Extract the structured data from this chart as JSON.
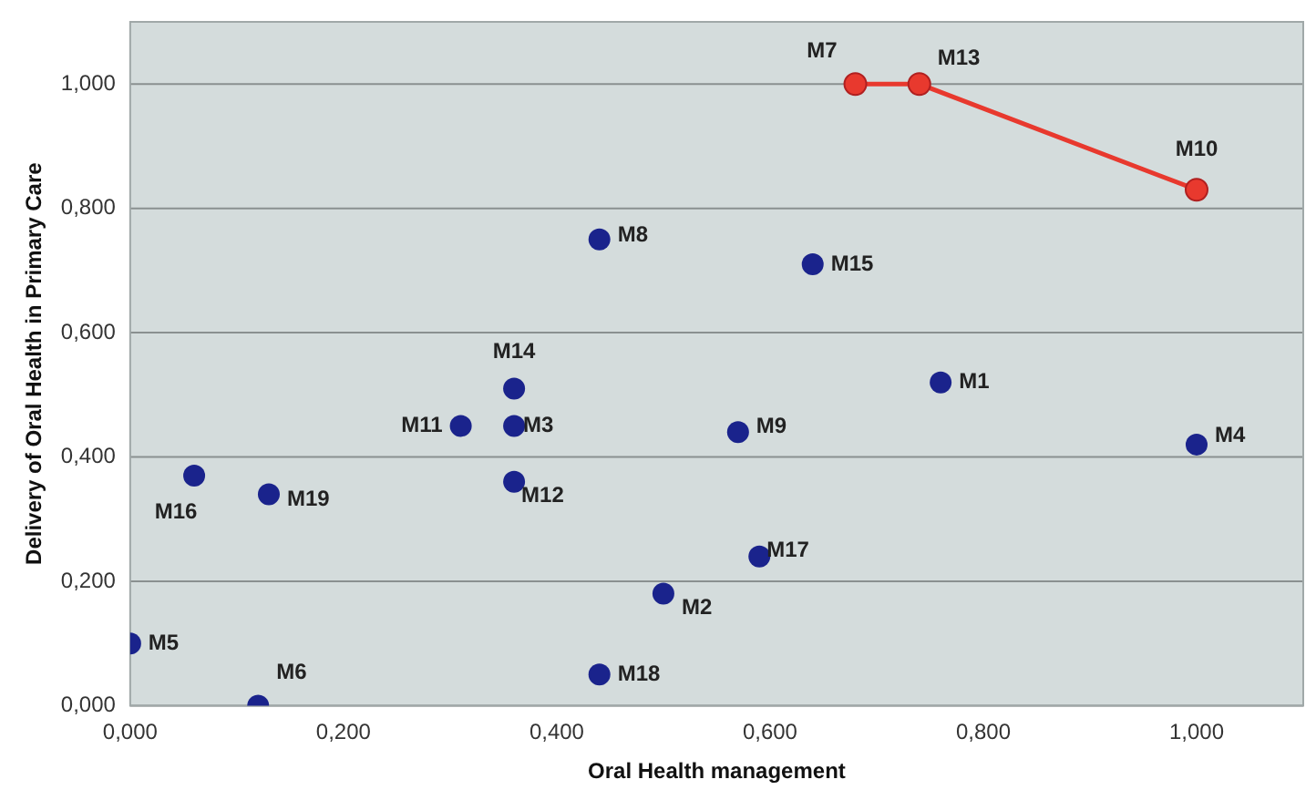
{
  "chart_data": {
    "type": "scatter",
    "xlabel": "Oral Health management",
    "ylabel": "Delivery of Oral Health in Primary Care",
    "xlim": [
      0,
      1.1
    ],
    "ylim": [
      0,
      1.1
    ],
    "xticks": [
      {
        "value": 0,
        "label": "0,000"
      },
      {
        "value": 0.2,
        "label": "0,200"
      },
      {
        "value": 0.4,
        "label": "0,400"
      },
      {
        "value": 0.6,
        "label": "0,600"
      },
      {
        "value": 0.8,
        "label": "0,800"
      },
      {
        "value": 1,
        "label": "1,000"
      }
    ],
    "yticks": [
      {
        "value": 0,
        "label": "0,000"
      },
      {
        "value": 0.2,
        "label": "0,200"
      },
      {
        "value": 0.4,
        "label": "0,400"
      },
      {
        "value": 0.6,
        "label": "0,600"
      },
      {
        "value": 0.8,
        "label": "0,800"
      },
      {
        "value": 1,
        "label": "1,000"
      }
    ],
    "grid": "y",
    "legend": false,
    "marker": "circle",
    "series": [
      {
        "color": "#1a238c",
        "x": [
          0.76,
          0.5,
          0.36,
          1.0,
          0.0,
          0.12,
          0.44,
          0.57,
          0.31,
          0.36,
          0.36,
          0.64,
          0.06,
          0.59,
          0.44,
          0.13
        ],
        "values": [
          0.52,
          0.18,
          0.45,
          0.42,
          0.1,
          0.0,
          0.75,
          0.44,
          0.45,
          0.36,
          0.51,
          0.71,
          0.37,
          0.24,
          0.05,
          0.34
        ]
      },
      {
        "type": "line",
        "color": "#e8392e",
        "line_style": "solid",
        "x": [
          0.68,
          0.74,
          1.0
        ],
        "values": [
          1.0,
          1.0,
          0.83
        ]
      }
    ],
    "annotations": [
      {
        "text": "M1",
        "x": 0.76,
        "y": 0.52
      },
      {
        "text": "M2",
        "x": 0.5,
        "y": 0.18
      },
      {
        "text": "M3",
        "x": 0.36,
        "y": 0.45
      },
      {
        "text": "M4",
        "x": 1.0,
        "y": 0.42
      },
      {
        "text": "M5",
        "x": 0.0,
        "y": 0.1
      },
      {
        "text": "M6",
        "x": 0.12,
        "y": 0.0
      },
      {
        "text": "M7",
        "x": 0.68,
        "y": 1.0
      },
      {
        "text": "M8",
        "x": 0.44,
        "y": 0.75
      },
      {
        "text": "M9",
        "x": 0.57,
        "y": 0.44
      },
      {
        "text": "M10",
        "x": 1.0,
        "y": 0.83
      },
      {
        "text": "M11",
        "x": 0.31,
        "y": 0.45
      },
      {
        "text": "M12",
        "x": 0.36,
        "y": 0.36
      },
      {
        "text": "M13",
        "x": 0.74,
        "y": 1.0
      },
      {
        "text": "M14",
        "x": 0.36,
        "y": 0.51
      },
      {
        "text": "M15",
        "x": 0.64,
        "y": 0.71
      },
      {
        "text": "M16",
        "x": 0.06,
        "y": 0.37
      },
      {
        "text": "M17",
        "x": 0.59,
        "y": 0.24
      },
      {
        "text": "M18",
        "x": 0.44,
        "y": 0.05
      },
      {
        "text": "M19",
        "x": 0.13,
        "y": 0.34
      }
    ]
  }
}
